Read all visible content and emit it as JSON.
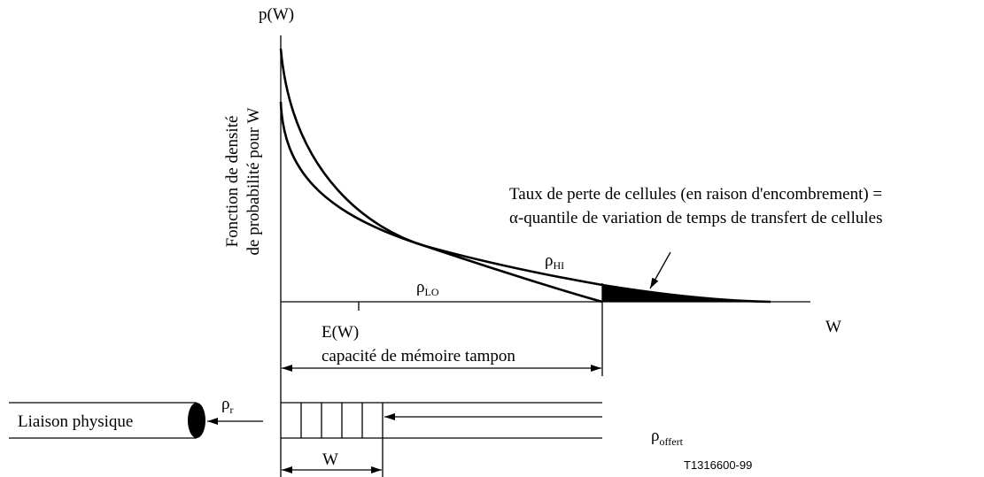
{
  "axis": {
    "y_label": "p(W)",
    "x_label": "W",
    "y_title": [
      "Fonction de densité",
      "de probabilité pour W"
    ]
  },
  "annotation": [
    "Taux de perte de cellules (en raison d'encombrement) =",
    "α-quantile de variation de temps de transfert de cellules"
  ],
  "curves": {
    "hi": {
      "symbol": "ρ",
      "subscript": "HI"
    },
    "lo": {
      "symbol": "ρ",
      "subscript": "LO"
    }
  },
  "mean_label": "E(W)",
  "buffer_label": "capacité de mémoire tampon",
  "link_label": "Liaison physique",
  "rate_out": {
    "symbol": "ρ",
    "subscript": "r"
  },
  "rate_in": {
    "symbol": "ρ",
    "subscript": "offert"
  },
  "queue_label": "W",
  "figure_id": "T1316600-99"
}
